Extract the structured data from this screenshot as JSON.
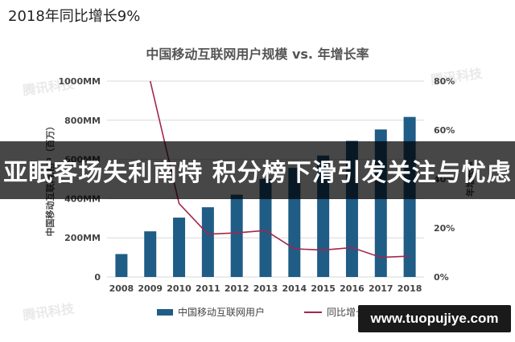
{
  "headline": {
    "top_line": "2018年同比增长9%"
  },
  "banner": {
    "text": "亚眠客场失利南特 积分榜下滑引发关注与忧虑"
  },
  "watermarks": {
    "brand": "腾讯科技",
    "url": "www.tuopujiye.com"
  },
  "chart_data": {
    "type": "bar",
    "title": "中国移动互联网用户规模 vs. 年增长率",
    "categories": [
      "2008",
      "2009",
      "2010",
      "2011",
      "2012",
      "2013",
      "2014",
      "2015",
      "2016",
      "2017",
      "2018"
    ],
    "series": [
      {
        "name": "中国移动互联网用户",
        "type": "bar",
        "axis": "left",
        "color": "#1f5c86",
        "values": [
          117,
          233,
          303,
          356,
          420,
          500,
          557,
          620,
          695,
          753,
          817
        ]
      },
      {
        "name": "同比增长",
        "type": "line",
        "axis": "right",
        "color": "#a3264b",
        "values": [
          null,
          99,
          30,
          17.5,
          18,
          19,
          11.5,
          11,
          12,
          8,
          8.5
        ]
      }
    ],
    "ylabel_left": "中国移动互联网用户（百万）",
    "ylabel_right": "年增长率",
    "ylim_left": [
      0,
      1000
    ],
    "yticks_left": [
      "0",
      "200MM",
      "400MM",
      "600MM",
      "800MM",
      "1000MM"
    ],
    "ylim_right": [
      0,
      80
    ],
    "yticks_right": [
      "0%",
      "20%",
      "40%",
      "60%",
      "80%"
    ],
    "legend": [
      "中国移动互联网用户",
      "同比增长"
    ],
    "legend_position": "bottom",
    "grid": true
  }
}
